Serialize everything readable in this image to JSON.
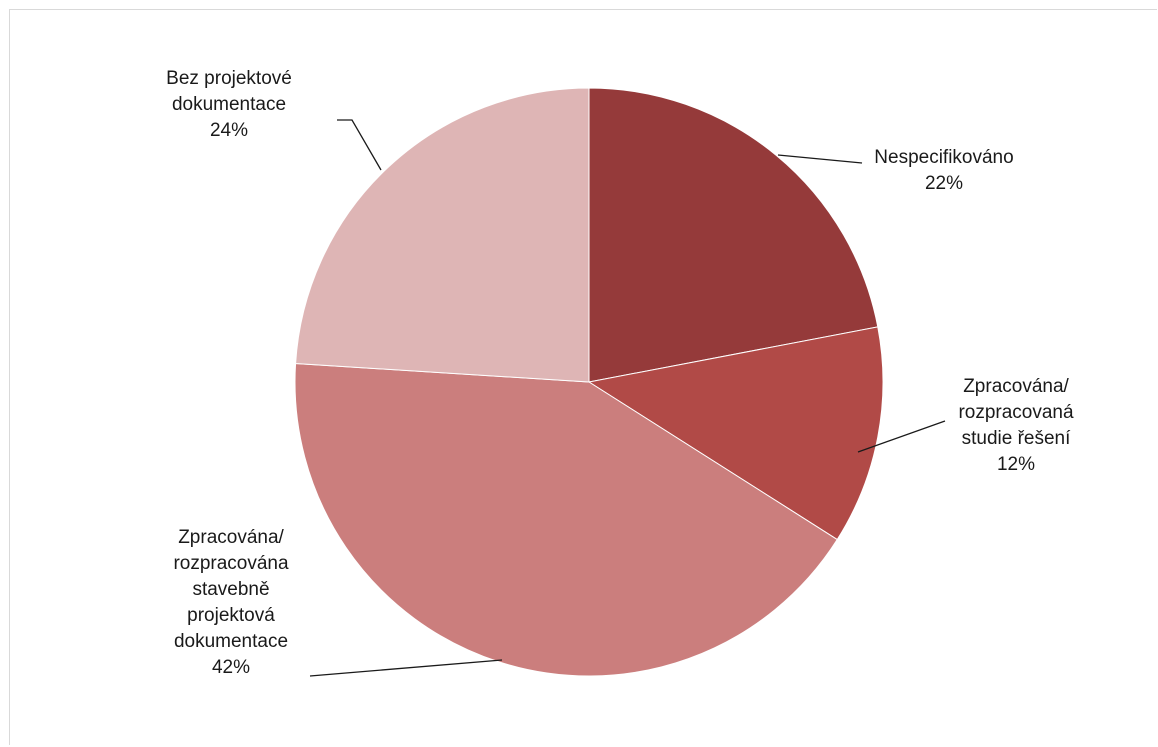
{
  "chart_data": {
    "type": "pie",
    "title": "",
    "slices": [
      {
        "lines": [
          "Nespecifikováno"
        ],
        "percent_label": "22%",
        "value": 22,
        "color": "#953A3A"
      },
      {
        "lines": [
          "Zpracována/",
          "rozpracovaná",
          "studie řešení"
        ],
        "percent_label": "12%",
        "value": 12,
        "color": "#B14A47"
      },
      {
        "lines": [
          "Zpracována/",
          "rozpracována",
          "stavebně",
          "projektová",
          "dokumentace"
        ],
        "percent_label": "42%",
        "value": 42,
        "color": "#CB7E7D"
      },
      {
        "lines": [
          "Bez projektové",
          "dokumentace"
        ],
        "percent_label": "24%",
        "value": 24,
        "color": "#DEB5B5"
      }
    ]
  }
}
